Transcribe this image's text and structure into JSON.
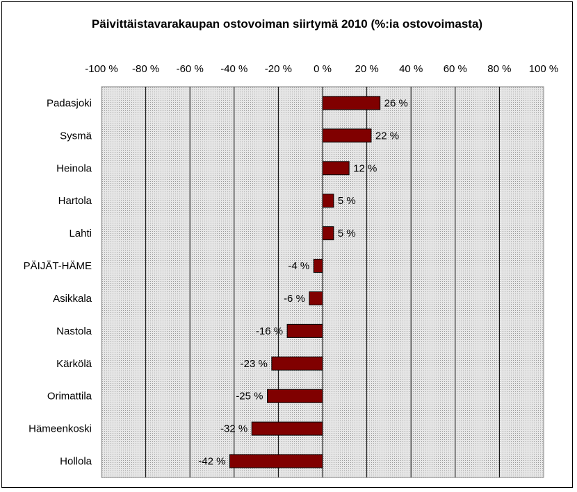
{
  "chart_data": {
    "type": "bar",
    "orientation": "horizontal",
    "title": "Päivittäistavarakaupan ostovoiman siirtymä 2010 (%:ia ostovoimasta)",
    "xlim": [
      -100,
      100
    ],
    "xticks": [
      -100,
      -80,
      -60,
      -40,
      -20,
      0,
      20,
      40,
      60,
      80,
      100
    ],
    "xtick_labels": [
      "-100 %",
      "-80 %",
      "-60 %",
      "-40 %",
      "-20 %",
      "0 %",
      "20 %",
      "40 %",
      "60 %",
      "80 %",
      "100 %"
    ],
    "x_axis_position": "top",
    "grid": true,
    "categories": [
      "Padasjoki",
      "Sysmä",
      "Heinola",
      "Hartola",
      "Lahti",
      "PÄIJÄT-HÄME",
      "Asikkala",
      "Nastola",
      "Kärkölä",
      "Orimattila",
      "Hämeenkoski",
      "Hollola"
    ],
    "values": [
      26,
      22,
      12,
      5,
      5,
      -4,
      -6,
      -16,
      -23,
      -25,
      -32,
      -42
    ],
    "value_labels": [
      "26 %",
      "22 %",
      "12 %",
      "5 %",
      "5 %",
      "-4 %",
      "-6 %",
      "-16 %",
      "-23 %",
      "-25 %",
      "-32 %",
      "-42 %"
    ],
    "colors": {
      "bar": "#800000",
      "plot_background": "#d9d9d9",
      "gridline": "#000000"
    }
  }
}
